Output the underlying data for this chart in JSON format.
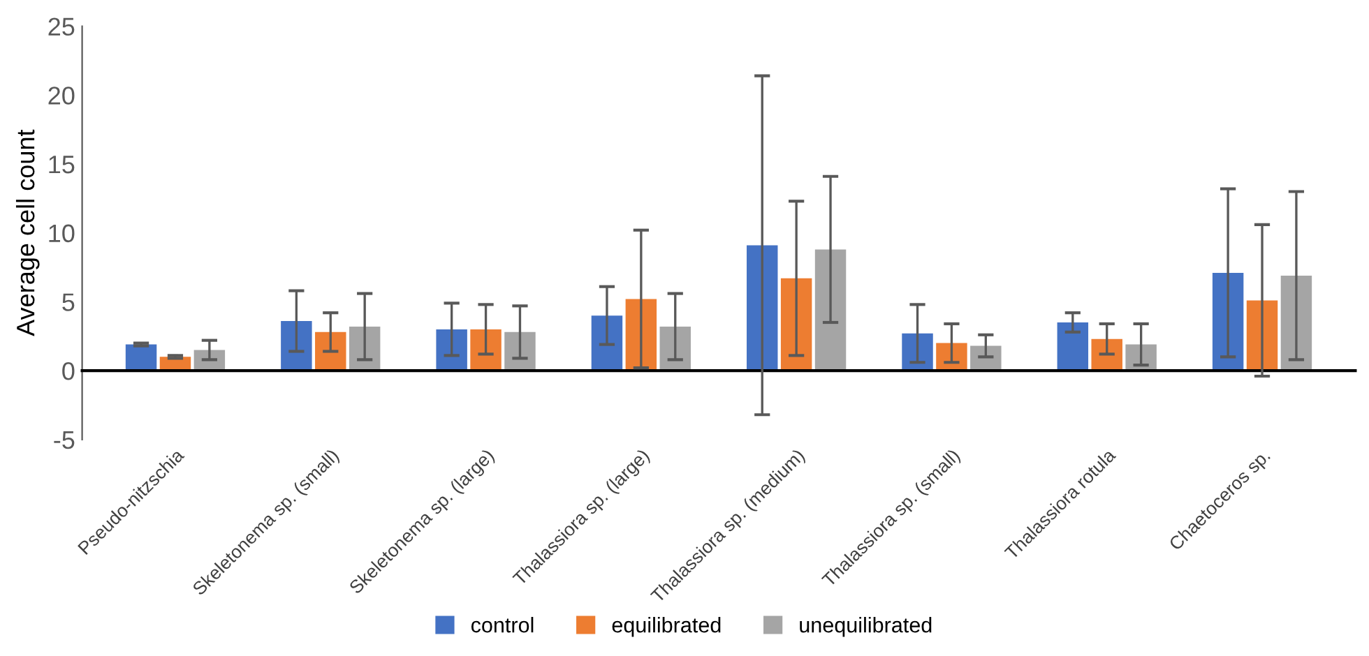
{
  "chart_data": {
    "type": "bar",
    "ylabel": "Average cell count",
    "categories": [
      "Pseudo-nitzschia",
      "Skeletonema sp. (small)",
      "Skeletonema sp. (large)",
      "Thalassiora sp. (large)",
      "Thalassiora sp. (medium)",
      "Thalassiora sp. (small)",
      "Thalassiora rotula",
      "Chaetoceros sp."
    ],
    "series": [
      {
        "name": "control",
        "color": "#4472c4",
        "values": [
          1.9,
          3.6,
          3.0,
          4.0,
          9.1,
          2.7,
          3.5,
          7.1
        ],
        "errors": [
          0.1,
          2.2,
          1.9,
          2.1,
          12.3,
          2.1,
          0.7,
          6.1
        ]
      },
      {
        "name": "equilibrated",
        "color": "#ed7d31",
        "values": [
          1.0,
          2.8,
          3.0,
          5.2,
          6.7,
          2.0,
          2.3,
          5.1
        ],
        "errors": [
          0.1,
          1.4,
          1.8,
          5.0,
          5.6,
          1.4,
          1.1,
          5.5
        ]
      },
      {
        "name": "unequilibrated",
        "color": "#a5a5a5",
        "values": [
          1.5,
          3.2,
          2.8,
          3.2,
          8.8,
          1.8,
          1.9,
          6.9
        ],
        "errors": [
          0.7,
          2.4,
          1.9,
          2.4,
          5.3,
          0.8,
          1.5,
          6.1
        ]
      }
    ],
    "ylim": [
      -5,
      25
    ],
    "yticks": [
      -5,
      0,
      5,
      10,
      15,
      20,
      25
    ],
    "legend": "bottom"
  }
}
